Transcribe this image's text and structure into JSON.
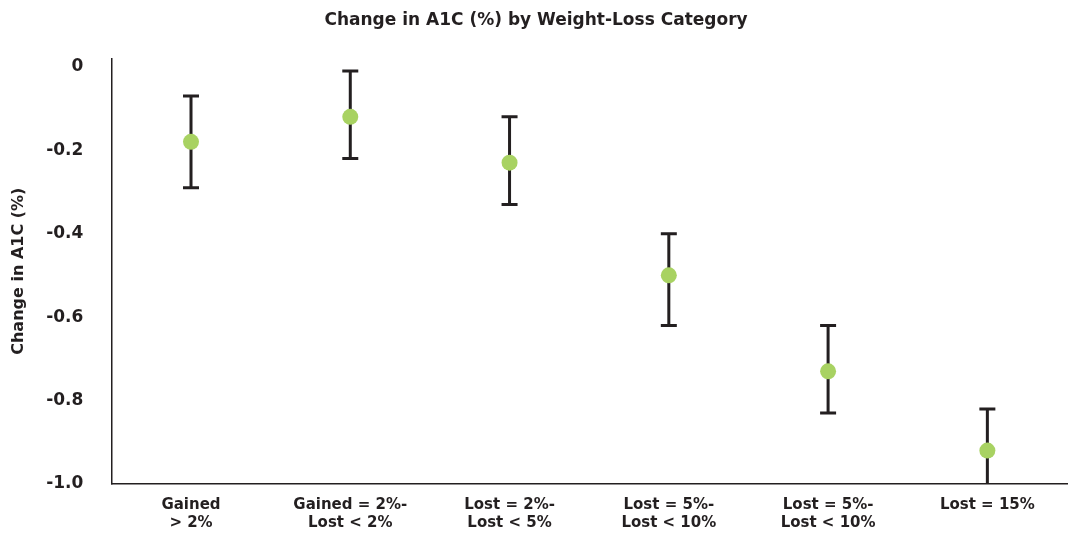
{
  "chart_data": {
    "type": "scatter",
    "title": "Change in A1C (%) by Weight-Loss Category",
    "ylabel": "Change in A1C (%)",
    "categories": [
      "Gained\n> 2%",
      "Gained = 2%-\nLost < 2%",
      "Lost = 2%-\nLost < 5%",
      "Lost = 5%-\nLost < 10%",
      "Lost = 5%-\nLost < 10%",
      "Lost = 15%"
    ],
    "values": [
      -0.18,
      -0.12,
      -0.23,
      -0.5,
      -0.73,
      -0.92
    ],
    "errors": [
      [
        -0.29,
        -0.07
      ],
      [
        -0.22,
        -0.01
      ],
      [
        -0.33,
        -0.12
      ],
      [
        -0.62,
        -0.4
      ],
      [
        -0.83,
        -0.62
      ],
      [
        -1.0,
        -0.82
      ]
    ],
    "color": "#a8d262",
    "marker": "circle",
    "grid": false,
    "legend": false,
    "ylim": [
      -1.0,
      0.02
    ],
    "yticks": [
      0,
      -0.2,
      -0.4,
      -0.6,
      -0.8,
      {
        "value": -1.0,
        "label": "-1.0"
      }
    ]
  }
}
